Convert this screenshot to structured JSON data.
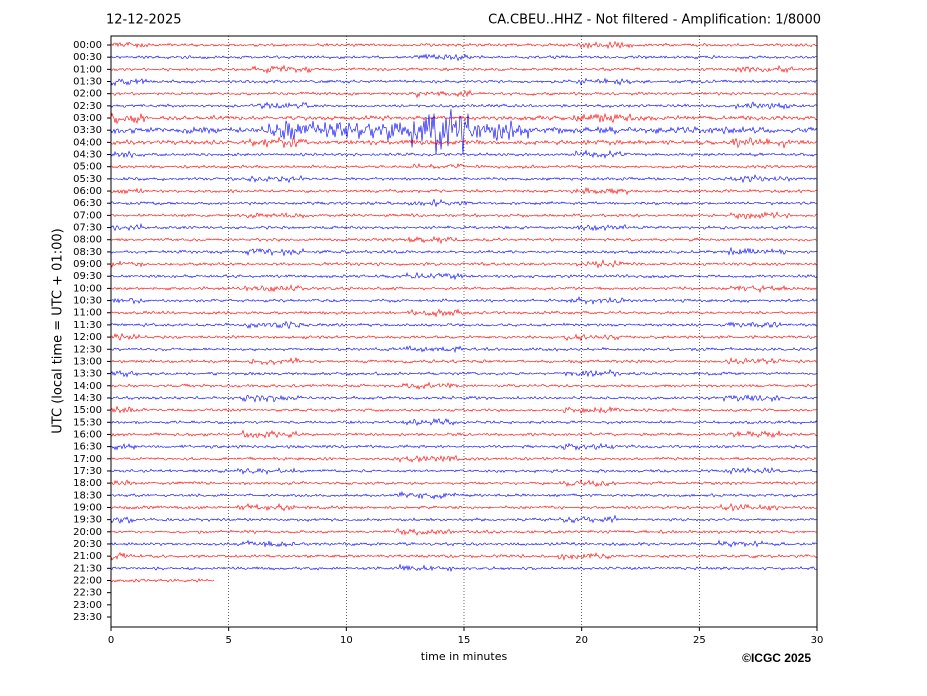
{
  "chart_data": {
    "type": "helicorder",
    "title": "12-12-2025",
    "subtitle": "CA.CBEU..HHZ - Not filtered - Amplification: 1/8000",
    "ylabel": "UTC (local time = UTC + 01:00)",
    "xlabel": "time in minutes",
    "annotation": "©ICGC 2025",
    "categories": [
      "00:00",
      "00:30",
      "01:00",
      "01:30",
      "02:00",
      "02:30",
      "03:00",
      "03:30",
      "04:00",
      "04:30",
      "05:00",
      "05:30",
      "06:00",
      "06:30",
      "07:00",
      "07:30",
      "08:00",
      "08:30",
      "09:00",
      "09:30",
      "10:00",
      "10:30",
      "11:00",
      "11:30",
      "12:00",
      "12:30",
      "13:00",
      "13:30",
      "14:00",
      "14:30",
      "15:00",
      "15:30",
      "16:00",
      "16:30",
      "17:00",
      "17:30",
      "18:00",
      "18:30",
      "19:00",
      "19:30",
      "20:00",
      "20:30",
      "21:00",
      "21:30",
      "22:00",
      "22:30",
      "23:00",
      "23:30"
    ],
    "trace_end": [
      30,
      30,
      30,
      30,
      30,
      30,
      30,
      30,
      30,
      30,
      30,
      30,
      30,
      30,
      30,
      30,
      30,
      30,
      30,
      30,
      30,
      30,
      30,
      30,
      30,
      30,
      30,
      30,
      30,
      30,
      30,
      30,
      30,
      30,
      30,
      30,
      30,
      30,
      30,
      30,
      30,
      30,
      30,
      30,
      4.4,
      null,
      null,
      null
    ],
    "colors": [
      "#ff0000",
      "#0000ff"
    ],
    "xlim": [
      0,
      30
    ],
    "xticks": [
      0,
      5,
      10,
      15,
      20,
      25,
      30
    ],
    "grid": true
  }
}
